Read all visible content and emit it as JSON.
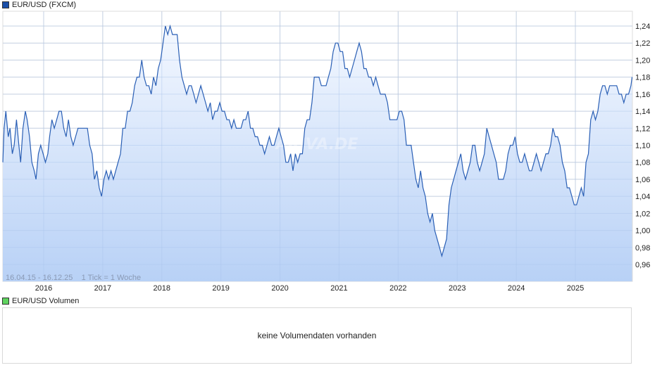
{
  "legend": {
    "main_label": "EUR/USD (FXCM)",
    "main_color": "#1a4fa8",
    "volume_label": "EUR/USD Volumen",
    "volume_color": "#5fd35f"
  },
  "range_info": "16.04.15 - 16.12.25    1 Tick = 1 Woche",
  "watermark": "ARIVA.DE",
  "volume_panel": {
    "message": "keine Volumendaten vorhanden"
  },
  "colors": {
    "line": "#2a5fb5",
    "fill_top": "#f3f7fe",
    "fill_bottom": "#b9d2f6",
    "grid": "#dddddd"
  },
  "chart_data": {
    "type": "area",
    "title": "EUR/USD (FXCM)",
    "xlabel": "",
    "ylabel": "",
    "range": "16.04.15 - 16.12.25",
    "tick_note": "1 Tick = 1 Woche",
    "x_tick_labels": [
      "2016",
      "2017",
      "2018",
      "2019",
      "2020",
      "2021",
      "2022",
      "2023",
      "2024",
      "2025"
    ],
    "y_tick_labels": [
      "1,24",
      "1,22",
      "1,20",
      "1,18",
      "1,16",
      "1,14",
      "1,12",
      "1,10",
      "1,08",
      "1,06",
      "1,04",
      "1,02",
      "1,00",
      "0,98",
      "0,96"
    ],
    "y_ticks": [
      1.24,
      1.22,
      1.2,
      1.18,
      1.16,
      1.14,
      1.12,
      1.1,
      1.08,
      1.06,
      1.04,
      1.02,
      1.0,
      0.98,
      0.96
    ],
    "ylim": [
      0.945,
      1.26
    ],
    "xlim": [
      2015.29,
      2025.96
    ],
    "grid": true,
    "legend_position": "top-left",
    "series": [
      {
        "name": "EUR/USD",
        "points": [
          [
            2015.29,
            1.08
          ],
          [
            2015.33,
            1.12
          ],
          [
            2015.36,
            1.14
          ],
          [
            2015.4,
            1.11
          ],
          [
            2015.43,
            1.12
          ],
          [
            2015.47,
            1.09
          ],
          [
            2015.5,
            1.1
          ],
          [
            2015.54,
            1.13
          ],
          [
            2015.58,
            1.1
          ],
          [
            2015.61,
            1.08
          ],
          [
            2015.65,
            1.12
          ],
          [
            2015.69,
            1.14
          ],
          [
            2015.72,
            1.13
          ],
          [
            2015.76,
            1.11
          ],
          [
            2015.8,
            1.08
          ],
          [
            2015.84,
            1.07
          ],
          [
            2015.87,
            1.06
          ],
          [
            2015.91,
            1.09
          ],
          [
            2015.95,
            1.1
          ],
          [
            2015.99,
            1.09
          ],
          [
            2016.03,
            1.08
          ],
          [
            2016.07,
            1.09
          ],
          [
            2016.1,
            1.11
          ],
          [
            2016.14,
            1.13
          ],
          [
            2016.18,
            1.12
          ],
          [
            2016.22,
            1.13
          ],
          [
            2016.26,
            1.14
          ],
          [
            2016.3,
            1.14
          ],
          [
            2016.34,
            1.12
          ],
          [
            2016.38,
            1.11
          ],
          [
            2016.42,
            1.13
          ],
          [
            2016.46,
            1.11
          ],
          [
            2016.5,
            1.1
          ],
          [
            2016.54,
            1.11
          ],
          [
            2016.58,
            1.12
          ],
          [
            2016.62,
            1.12
          ],
          [
            2016.66,
            1.12
          ],
          [
            2016.7,
            1.12
          ],
          [
            2016.74,
            1.12
          ],
          [
            2016.78,
            1.1
          ],
          [
            2016.82,
            1.09
          ],
          [
            2016.86,
            1.06
          ],
          [
            2016.9,
            1.07
          ],
          [
            2016.94,
            1.05
          ],
          [
            2016.98,
            1.04
          ],
          [
            2017.02,
            1.06
          ],
          [
            2017.06,
            1.07
          ],
          [
            2017.1,
            1.06
          ],
          [
            2017.14,
            1.07
          ],
          [
            2017.18,
            1.06
          ],
          [
            2017.22,
            1.07
          ],
          [
            2017.26,
            1.08
          ],
          [
            2017.3,
            1.09
          ],
          [
            2017.34,
            1.12
          ],
          [
            2017.38,
            1.12
          ],
          [
            2017.42,
            1.14
          ],
          [
            2017.46,
            1.14
          ],
          [
            2017.5,
            1.15
          ],
          [
            2017.54,
            1.17
          ],
          [
            2017.58,
            1.18
          ],
          [
            2017.62,
            1.18
          ],
          [
            2017.66,
            1.2
          ],
          [
            2017.7,
            1.18
          ],
          [
            2017.74,
            1.17
          ],
          [
            2017.78,
            1.17
          ],
          [
            2017.82,
            1.16
          ],
          [
            2017.86,
            1.18
          ],
          [
            2017.9,
            1.17
          ],
          [
            2017.94,
            1.19
          ],
          [
            2017.98,
            1.2
          ],
          [
            2018.02,
            1.22
          ],
          [
            2018.06,
            1.24
          ],
          [
            2018.1,
            1.23
          ],
          [
            2018.14,
            1.24
          ],
          [
            2018.18,
            1.23
          ],
          [
            2018.22,
            1.23
          ],
          [
            2018.26,
            1.23
          ],
          [
            2018.3,
            1.2
          ],
          [
            2018.34,
            1.18
          ],
          [
            2018.38,
            1.17
          ],
          [
            2018.42,
            1.16
          ],
          [
            2018.46,
            1.17
          ],
          [
            2018.5,
            1.17
          ],
          [
            2018.54,
            1.16
          ],
          [
            2018.58,
            1.15
          ],
          [
            2018.62,
            1.16
          ],
          [
            2018.66,
            1.17
          ],
          [
            2018.7,
            1.16
          ],
          [
            2018.74,
            1.15
          ],
          [
            2018.78,
            1.14
          ],
          [
            2018.82,
            1.15
          ],
          [
            2018.86,
            1.13
          ],
          [
            2018.9,
            1.14
          ],
          [
            2018.94,
            1.14
          ],
          [
            2018.98,
            1.15
          ],
          [
            2019.02,
            1.14
          ],
          [
            2019.06,
            1.14
          ],
          [
            2019.1,
            1.13
          ],
          [
            2019.14,
            1.13
          ],
          [
            2019.18,
            1.12
          ],
          [
            2019.22,
            1.13
          ],
          [
            2019.26,
            1.12
          ],
          [
            2019.3,
            1.12
          ],
          [
            2019.34,
            1.12
          ],
          [
            2019.38,
            1.13
          ],
          [
            2019.42,
            1.13
          ],
          [
            2019.46,
            1.14
          ],
          [
            2019.5,
            1.12
          ],
          [
            2019.54,
            1.12
          ],
          [
            2019.58,
            1.11
          ],
          [
            2019.62,
            1.11
          ],
          [
            2019.66,
            1.1
          ],
          [
            2019.7,
            1.1
          ],
          [
            2019.74,
            1.09
          ],
          [
            2019.78,
            1.1
          ],
          [
            2019.82,
            1.11
          ],
          [
            2019.86,
            1.1
          ],
          [
            2019.9,
            1.1
          ],
          [
            2019.94,
            1.11
          ],
          [
            2019.98,
            1.12
          ],
          [
            2020.02,
            1.11
          ],
          [
            2020.06,
            1.1
          ],
          [
            2020.1,
            1.08
          ],
          [
            2020.14,
            1.08
          ],
          [
            2020.18,
            1.09
          ],
          [
            2020.22,
            1.07
          ],
          [
            2020.26,
            1.09
          ],
          [
            2020.3,
            1.08
          ],
          [
            2020.34,
            1.09
          ],
          [
            2020.38,
            1.09
          ],
          [
            2020.42,
            1.12
          ],
          [
            2020.46,
            1.13
          ],
          [
            2020.5,
            1.13
          ],
          [
            2020.54,
            1.15
          ],
          [
            2020.58,
            1.18
          ],
          [
            2020.62,
            1.18
          ],
          [
            2020.66,
            1.18
          ],
          [
            2020.7,
            1.17
          ],
          [
            2020.74,
            1.17
          ],
          [
            2020.78,
            1.17
          ],
          [
            2020.82,
            1.18
          ],
          [
            2020.86,
            1.19
          ],
          [
            2020.9,
            1.21
          ],
          [
            2020.94,
            1.22
          ],
          [
            2020.98,
            1.22
          ],
          [
            2021.02,
            1.21
          ],
          [
            2021.06,
            1.21
          ],
          [
            2021.1,
            1.19
          ],
          [
            2021.14,
            1.19
          ],
          [
            2021.18,
            1.18
          ],
          [
            2021.22,
            1.19
          ],
          [
            2021.26,
            1.2
          ],
          [
            2021.3,
            1.21
          ],
          [
            2021.34,
            1.22
          ],
          [
            2021.38,
            1.21
          ],
          [
            2021.42,
            1.19
          ],
          [
            2021.46,
            1.19
          ],
          [
            2021.5,
            1.18
          ],
          [
            2021.54,
            1.18
          ],
          [
            2021.58,
            1.17
          ],
          [
            2021.62,
            1.18
          ],
          [
            2021.66,
            1.17
          ],
          [
            2021.7,
            1.16
          ],
          [
            2021.74,
            1.16
          ],
          [
            2021.78,
            1.16
          ],
          [
            2021.82,
            1.15
          ],
          [
            2021.86,
            1.13
          ],
          [
            2021.9,
            1.13
          ],
          [
            2021.94,
            1.13
          ],
          [
            2021.98,
            1.13
          ],
          [
            2022.02,
            1.14
          ],
          [
            2022.06,
            1.14
          ],
          [
            2022.1,
            1.13
          ],
          [
            2022.14,
            1.1
          ],
          [
            2022.18,
            1.1
          ],
          [
            2022.22,
            1.1
          ],
          [
            2022.26,
            1.08
          ],
          [
            2022.3,
            1.06
          ],
          [
            2022.34,
            1.05
          ],
          [
            2022.38,
            1.07
          ],
          [
            2022.42,
            1.05
          ],
          [
            2022.46,
            1.04
          ],
          [
            2022.5,
            1.02
          ],
          [
            2022.54,
            1.01
          ],
          [
            2022.58,
            1.02
          ],
          [
            2022.62,
            1.0
          ],
          [
            2022.66,
            0.99
          ],
          [
            2022.7,
            0.98
          ],
          [
            2022.74,
            0.97
          ],
          [
            2022.78,
            0.98
          ],
          [
            2022.82,
            0.99
          ],
          [
            2022.86,
            1.03
          ],
          [
            2022.9,
            1.05
          ],
          [
            2022.94,
            1.06
          ],
          [
            2022.98,
            1.07
          ],
          [
            2023.02,
            1.08
          ],
          [
            2023.06,
            1.09
          ],
          [
            2023.1,
            1.07
          ],
          [
            2023.14,
            1.06
          ],
          [
            2023.18,
            1.07
          ],
          [
            2023.22,
            1.08
          ],
          [
            2023.26,
            1.1
          ],
          [
            2023.3,
            1.1
          ],
          [
            2023.34,
            1.08
          ],
          [
            2023.38,
            1.07
          ],
          [
            2023.42,
            1.08
          ],
          [
            2023.46,
            1.09
          ],
          [
            2023.5,
            1.12
          ],
          [
            2023.54,
            1.11
          ],
          [
            2023.58,
            1.1
          ],
          [
            2023.62,
            1.09
          ],
          [
            2023.66,
            1.08
          ],
          [
            2023.7,
            1.06
          ],
          [
            2023.74,
            1.06
          ],
          [
            2023.78,
            1.06
          ],
          [
            2023.82,
            1.07
          ],
          [
            2023.86,
            1.09
          ],
          [
            2023.9,
            1.1
          ],
          [
            2023.94,
            1.1
          ],
          [
            2023.98,
            1.11
          ],
          [
            2024.02,
            1.09
          ],
          [
            2024.06,
            1.08
          ],
          [
            2024.1,
            1.08
          ],
          [
            2024.14,
            1.09
          ],
          [
            2024.18,
            1.08
          ],
          [
            2024.22,
            1.07
          ],
          [
            2024.26,
            1.07
          ],
          [
            2024.3,
            1.08
          ],
          [
            2024.34,
            1.09
          ],
          [
            2024.38,
            1.08
          ],
          [
            2024.42,
            1.07
          ],
          [
            2024.46,
            1.08
          ],
          [
            2024.5,
            1.09
          ],
          [
            2024.54,
            1.09
          ],
          [
            2024.58,
            1.1
          ],
          [
            2024.62,
            1.12
          ],
          [
            2024.66,
            1.11
          ],
          [
            2024.7,
            1.11
          ],
          [
            2024.74,
            1.1
          ],
          [
            2024.78,
            1.08
          ],
          [
            2024.82,
            1.07
          ],
          [
            2024.86,
            1.05
          ],
          [
            2024.9,
            1.05
          ],
          [
            2024.94,
            1.04
          ],
          [
            2024.98,
            1.03
          ],
          [
            2025.02,
            1.03
          ],
          [
            2025.06,
            1.04
          ],
          [
            2025.1,
            1.05
          ],
          [
            2025.14,
            1.04
          ],
          [
            2025.18,
            1.08
          ],
          [
            2025.22,
            1.09
          ],
          [
            2025.26,
            1.13
          ],
          [
            2025.3,
            1.14
          ],
          [
            2025.34,
            1.13
          ],
          [
            2025.38,
            1.14
          ],
          [
            2025.42,
            1.16
          ],
          [
            2025.46,
            1.17
          ],
          [
            2025.5,
            1.17
          ],
          [
            2025.54,
            1.16
          ],
          [
            2025.58,
            1.17
          ],
          [
            2025.62,
            1.17
          ],
          [
            2025.66,
            1.17
          ],
          [
            2025.7,
            1.17
          ],
          [
            2025.74,
            1.16
          ],
          [
            2025.78,
            1.16
          ],
          [
            2025.82,
            1.15
          ],
          [
            2025.86,
            1.16
          ],
          [
            2025.9,
            1.16
          ],
          [
            2025.94,
            1.17
          ],
          [
            2025.96,
            1.18
          ]
        ]
      }
    ]
  }
}
